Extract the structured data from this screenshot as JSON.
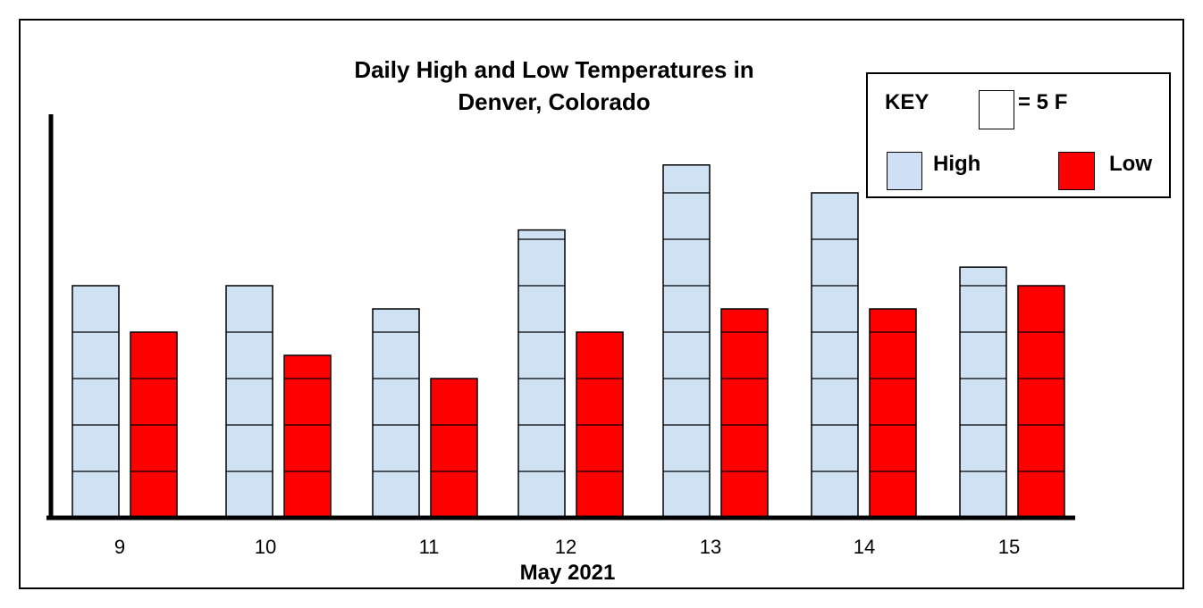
{
  "chart_data": {
    "type": "bar",
    "title_line1": "Daily High and Low Temperatures in",
    "title_line2": "Denver, Colorado",
    "xlabel": "May 2021",
    "ylabel": "",
    "categories": [
      "9",
      "10",
      "11",
      "12",
      "13",
      "14",
      "15"
    ],
    "series": [
      {
        "name": "High",
        "color": "#cfe2f3",
        "values": [
          25,
          25,
          22.5,
          31,
          38,
          35,
          27
        ]
      },
      {
        "name": "Low",
        "color": "#ff0000",
        "values": [
          20,
          17.5,
          15,
          20,
          22.5,
          22.5,
          25
        ]
      }
    ],
    "ylim": [
      0,
      40
    ],
    "key": {
      "title": "KEY",
      "unit_text": "= 5 F",
      "high_label": "High",
      "low_label": "Low"
    }
  }
}
